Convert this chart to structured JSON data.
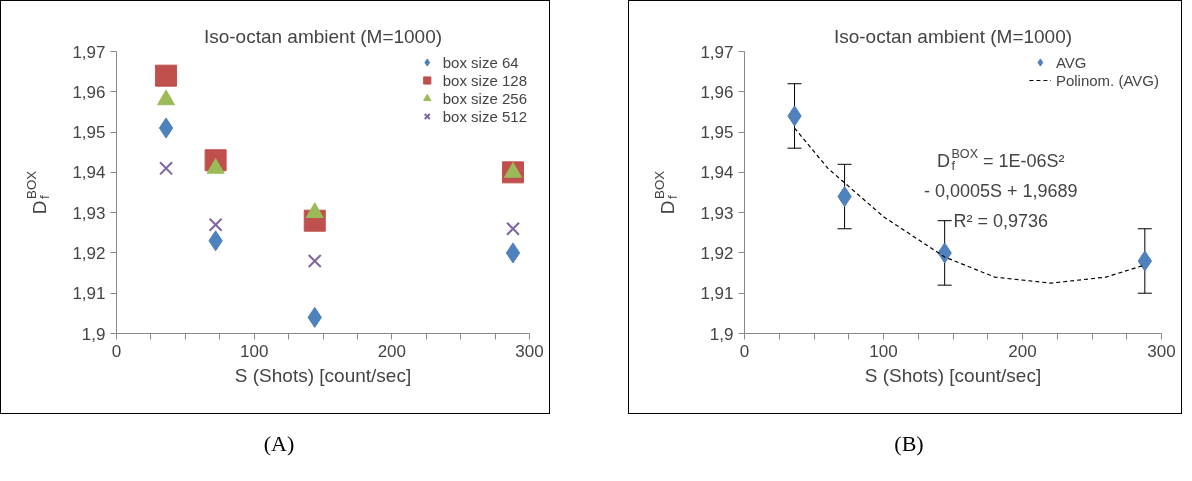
{
  "chart_data": [
    {
      "type": "scatter",
      "title": "Iso-octan ambient (M=1000)",
      "xlabel": "S (Shots) [count/sec]",
      "ylabel": "D$_{f}$$^{BOX}$",
      "x": [
        36,
        72,
        144,
        288
      ],
      "series": [
        {
          "name": "box size 64",
          "color": "#4f81bd",
          "marker": "diamond",
          "values": [
            1.951,
            1.923,
            1.904,
            1.92
          ]
        },
        {
          "name": "box size 128",
          "color": "#c0504d",
          "marker": "square",
          "values": [
            1.964,
            1.943,
            1.928,
            1.94
          ]
        },
        {
          "name": "box size 256",
          "color": "#9bbb59",
          "marker": "triangle",
          "values": [
            1.958,
            1.941,
            1.93,
            1.94
          ]
        },
        {
          "name": "box size 512",
          "color": "#8064a2",
          "marker": "cross",
          "values": [
            1.941,
            1.927,
            1.918,
            1.926
          ]
        }
      ],
      "xlim": [
        0,
        300
      ],
      "xticks": [
        0,
        {
          "value": 25,
          "label": null
        },
        {
          "value": 50,
          "label": null
        },
        {
          "value": 75,
          "label": null
        },
        100,
        {
          "value": 125,
          "label": null
        },
        {
          "value": 150,
          "label": null
        },
        {
          "value": 175,
          "label": null
        },
        200,
        {
          "value": 225,
          "label": null
        },
        {
          "value": 250,
          "label": null
        },
        {
          "value": 275,
          "label": null
        },
        300
      ],
      "ylim": [
        1.9,
        1.97
      ],
      "yticks": [
        {
          "value": 1.9,
          "label": "1,9"
        },
        {
          "value": 1.91,
          "label": "1,91"
        },
        {
          "value": 1.92,
          "label": "1,92"
        },
        {
          "value": 1.93,
          "label": "1,93"
        },
        {
          "value": 1.94,
          "label": "1,94"
        },
        {
          "value": 1.95,
          "label": "1,95"
        },
        {
          "value": 1.96,
          "label": "1,96"
        },
        {
          "value": 1.97,
          "label": "1,97"
        }
      ],
      "grid": false,
      "legend": "top right",
      "annotations": [
        "(A)"
      ]
    },
    {
      "type": "scatter",
      "title": "Iso-octan ambient (M=1000)",
      "xlabel": "S (Shots) [count/sec]",
      "ylabel": "D$_{f}$$^{BOX}$",
      "series": [
        {
          "name": "AVG",
          "type": "scatter",
          "color": "#4f81bd",
          "marker": "diamond",
          "x": [
            36,
            72,
            144,
            288
          ],
          "values": [
            1.954,
            1.934,
            1.92,
            1.918
          ],
          "errors": [
            0.008,
            0.008,
            0.008,
            0.008
          ]
        },
        {
          "name": "Polinom. (AVG)",
          "type": "line",
          "color": "#000000",
          "line_style": "dashed",
          "marker": "none",
          "x": [
            36,
            60,
            100,
            144,
            180,
            220,
            260,
            288
          ],
          "values": [
            1.951,
            1.941,
            1.929,
            1.919,
            1.914,
            1.9125,
            1.914,
            1.917
          ]
        }
      ],
      "xlim": [
        0,
        300
      ],
      "xticks": [
        0,
        {
          "value": 25,
          "label": null
        },
        {
          "value": 50,
          "label": null
        },
        {
          "value": 75,
          "label": null
        },
        100,
        {
          "value": 125,
          "label": null
        },
        {
          "value": 150,
          "label": null
        },
        {
          "value": 175,
          "label": null
        },
        200,
        {
          "value": 225,
          "label": null
        },
        {
          "value": 250,
          "label": null
        },
        {
          "value": 275,
          "label": null
        },
        300
      ],
      "ylim": [
        1.9,
        1.97
      ],
      "yticks": [
        {
          "value": 1.9,
          "label": "1,9"
        },
        {
          "value": 1.91,
          "label": "1,91"
        },
        {
          "value": 1.92,
          "label": "1,92"
        },
        {
          "value": 1.93,
          "label": "1,93"
        },
        {
          "value": 1.94,
          "label": "1,94"
        },
        {
          "value": 1.95,
          "label": "1,95"
        },
        {
          "value": 1.96,
          "label": "1,96"
        },
        {
          "value": 1.97,
          "label": "1,97"
        }
      ],
      "grid": false,
      "legend": "top right",
      "annotations": [
        "D$_{f}$$^{BOX}$ = 1E-06S²",
        "- 0,0005S + 1,9689",
        "R² = 0,9736",
        "(B)"
      ]
    }
  ]
}
